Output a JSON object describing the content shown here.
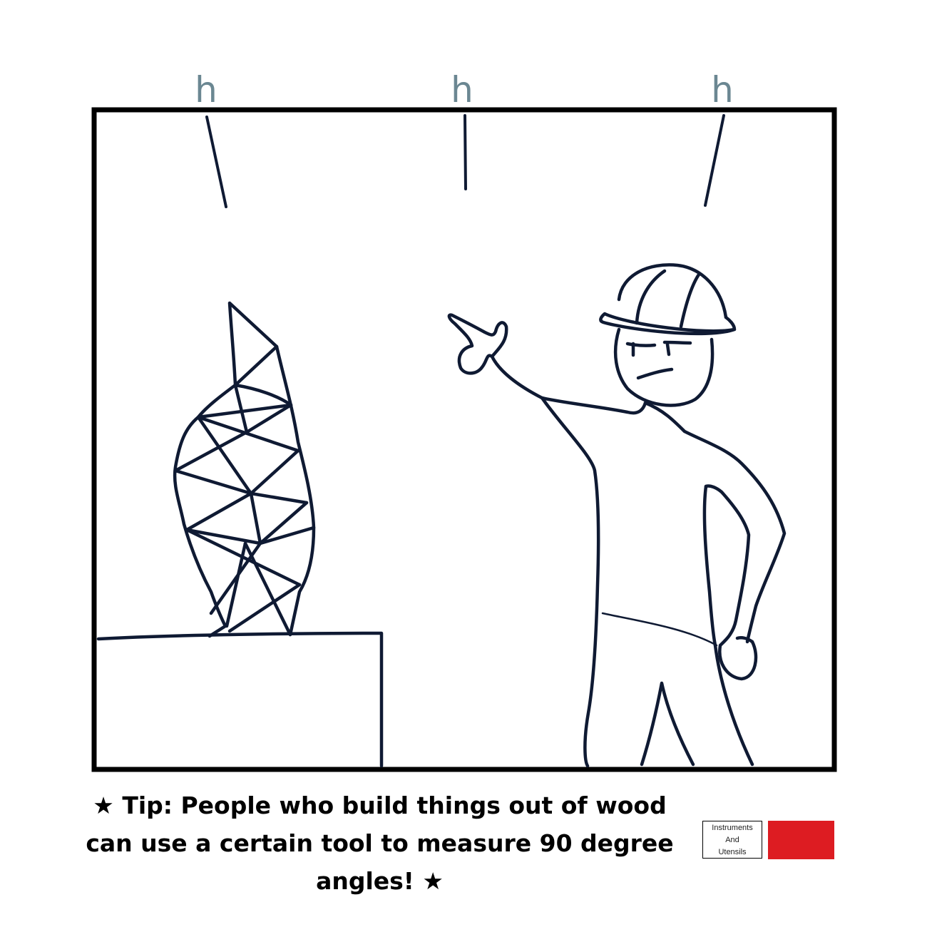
{
  "comic": {
    "sound_labels": [
      "h",
      "h",
      "h"
    ],
    "tip_text": "★ Tip: People who build things out of wood can use a certain tool to measure 90 degree angles! ★"
  },
  "category": {
    "line1": "Instruments",
    "line2": "And",
    "line3": "Utensils",
    "color": "#dd1c22"
  },
  "colors": {
    "ink": "#0f1a33",
    "sound_label": "#6b8792",
    "frame": "#000000"
  }
}
